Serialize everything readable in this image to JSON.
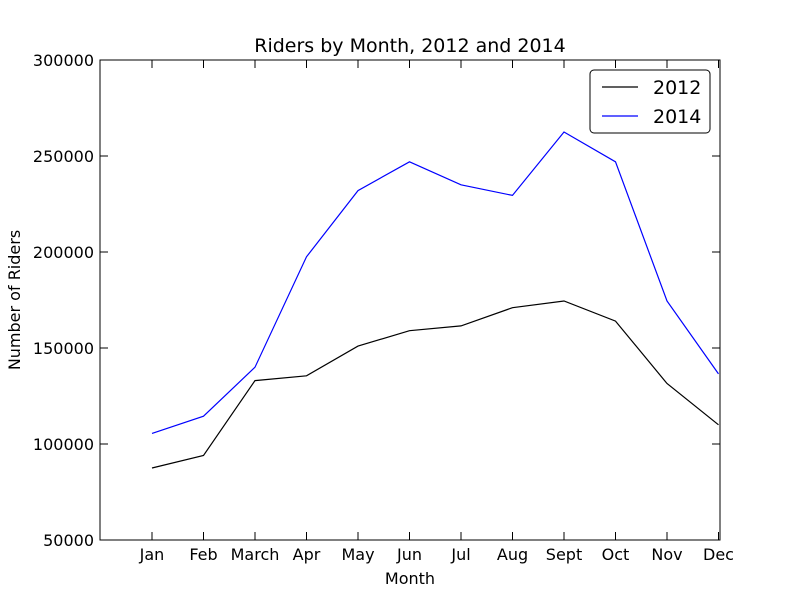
{
  "chart_data": {
    "type": "line",
    "title": "Riders by Month, 2012 and 2014",
    "xlabel": "Month",
    "ylabel": "Number of Riders",
    "categories": [
      "Jan",
      "Feb",
      "March",
      "Apr",
      "May",
      "Jun",
      "Jul",
      "Aug",
      "Sept",
      "Oct",
      "Nov",
      "Dec"
    ],
    "ylim": [
      50000,
      300000
    ],
    "yticks": [
      50000,
      100000,
      150000,
      200000,
      250000,
      300000
    ],
    "legend_position": "top-right",
    "grid": false,
    "series": [
      {
        "name": "2012",
        "color": "#000000",
        "values": [
          87500,
          94000,
          133000,
          135500,
          151000,
          159000,
          161500,
          171000,
          174500,
          164000,
          131500,
          110000
        ]
      },
      {
        "name": "2014",
        "color": "#0000ff",
        "values": [
          105500,
          114500,
          140000,
          197500,
          232000,
          247000,
          235000,
          229500,
          262500,
          247000,
          174500,
          136500
        ]
      }
    ]
  }
}
